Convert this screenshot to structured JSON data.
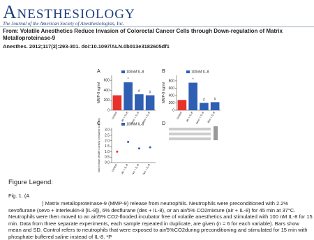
{
  "header": {
    "journal": "Anesthesiology",
    "tagline": "The Journal of the American Society of Anesthesiologists, Inc.",
    "from": "From: Volatile Anesthetics Reduce Invasion of Colorectal Cancer Cells through Down-regulation of Matrix Metalloproteinase-9",
    "citation": "Anesthes. 2012;117(2):293-301. doi:10.1097/ALN.0b013e3182605df1"
  },
  "figure": {
    "panels": [
      {
        "type": "bar",
        "letter": "A",
        "legend": "100nM IL-8",
        "ylabel": "MMP-9 ng/ml",
        "categories": [
          "control",
          "air + IL-8",
          "sevo + IL-8",
          "des + IL-8"
        ],
        "values": [
          300,
          560,
          320,
          300
        ],
        "colors": [
          "#e8312a",
          "#2f5fb3",
          "#2f5fb3",
          "#2f5fb3"
        ],
        "markers": [
          null,
          "*",
          "#",
          "#"
        ],
        "ylim": [
          0,
          700
        ],
        "yticks": [
          0,
          200,
          400,
          600
        ]
      },
      {
        "type": "bar",
        "letter": "B",
        "legend": "100nM IL-8",
        "ylabel": "MMP-9 ng/ml",
        "categories": [
          "control",
          "air + IL-8",
          "sevo + IL-8",
          "des + IL-8"
        ],
        "values": [
          280,
          750,
          200,
          220
        ],
        "colors": [
          "#e8312a",
          "#2f5fb3",
          "#2f5fb3",
          "#2f5fb3"
        ],
        "markers": [
          null,
          "*",
          "#",
          "#"
        ],
        "ylim": [
          0,
          950
        ],
        "yticks": [
          0,
          200,
          400,
          600,
          800
        ]
      },
      {
        "type": "scatter",
        "letter": "C",
        "legend": "100nM IL-8",
        "ylabel": "fold increase of MMP-9 activity (compared to control)",
        "categories": [
          "control",
          "air + IL-8",
          "sevo + IL-8",
          "des + IL-8"
        ],
        "values": [
          1.0,
          1.9,
          1.3,
          1.4
        ],
        "colors": [
          "#e8312a",
          "#2f5fb3",
          "#2f5fb3",
          "#2f5fb3"
        ],
        "markers": [
          null,
          null,
          null,
          null
        ],
        "ylim": [
          0,
          3.2
        ],
        "yticks": [
          {
            "value": 0,
            "label": "0.0"
          },
          0.5,
          {
            "value": 1,
            "label": "1.0"
          },
          1.5,
          {
            "value": 2,
            "label": "2.0"
          },
          2.5,
          {
            "value": 3,
            "label": "3.0"
          }
        ]
      },
      {
        "type": "blot",
        "letter": "D"
      }
    ]
  },
  "legend": {
    "heading": "Figure Legend:",
    "label": "Fig. 1. (A",
    "text": ") Matrix metalloproteinase-9 (MMP-9) release from neutrophils. Neutrophils were preconditioned with 2.2% sevoflurane (sevo + interleukin-8 [IL-8]), 6% desflurane (des + IL-8), or an air/5% CO2mixture (air + IL-8) for 45 min at 37°C. Neutrophils were then moved to an air/5% CO2-flooded incubator free of volatile anesthetics and stimulated with 100 nM IL-8 for 15 min. Data from three separate experiments, each sample repeated in duplicate, are given (n = 6 for each variable). Bars show mean and SD. Control refers to neutrophils that were exposed to air/5%CO2during preconditioning and stimulated for 15 min with phosphate-buffered saline instead of IL-8. *P"
  }
}
